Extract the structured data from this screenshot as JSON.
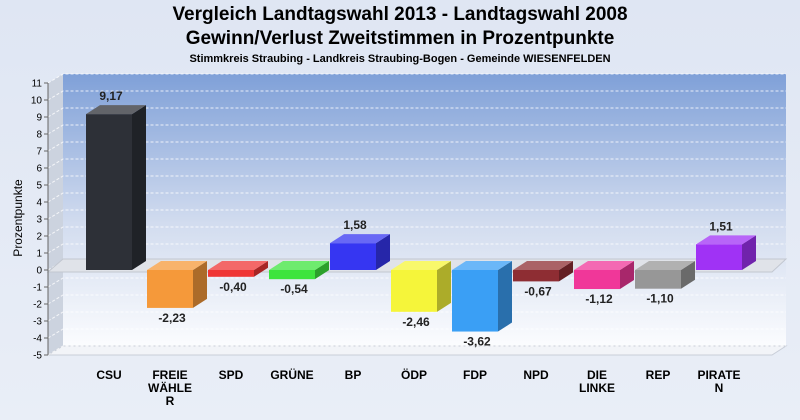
{
  "chart_data": {
    "type": "bar",
    "title": "Vergleich Landtagswahl 2013 - Landtagswahl 2008",
    "subtitle": "Gewinn/Verlust Zweitstimmen in Prozentpunkte",
    "subtitle2": "Stimmkreis Straubing - Landkreis Straubing-Bogen - Gemeinde WIESENFELDEN",
    "ylabel": "Prozentpunkte",
    "xlabel": "",
    "ylim": [
      -5,
      11
    ],
    "yticks": [
      "11",
      "10",
      "9",
      "8",
      "7",
      "6",
      "5",
      "4",
      "3",
      "2",
      "1",
      "0",
      "-1",
      "-2",
      "-3",
      "-4",
      "-5"
    ],
    "grid": true,
    "categories": [
      "CSU",
      "FREIE WÄHLER",
      "SPD",
      "GRÜNE",
      "BP",
      "ÖDP",
      "FDP",
      "NPD",
      "DIE LINKE",
      "REP",
      "PIRATEN"
    ],
    "category_lines": [
      [
        "CSU"
      ],
      [
        "FREIE",
        "WÄHLE",
        "R"
      ],
      [
        "SPD"
      ],
      [
        "GRÜNE"
      ],
      [
        "BP"
      ],
      [
        "ÖDP"
      ],
      [
        "FDP"
      ],
      [
        "NPD"
      ],
      [
        "DIE",
        "LINKE"
      ],
      [
        "REP"
      ],
      [
        "PIRATE",
        "N"
      ]
    ],
    "values": [
      9.17,
      -2.23,
      -0.4,
      -0.54,
      1.58,
      -2.46,
      -3.62,
      -0.67,
      -1.12,
      -1.1,
      1.51
    ],
    "value_labels": [
      "9,17",
      "-2,23",
      "-0,40",
      "-0,54",
      "1,58",
      "-2,46",
      "-3,62",
      "-0,67",
      "-1,12",
      "-1,10",
      "1,51"
    ],
    "colors": [
      "#2d3037",
      "#f5993a",
      "#ef3535",
      "#3de43d",
      "#3636f2",
      "#f5f53a",
      "#3a9ff5",
      "#8e2d33",
      "#f03799",
      "#979797",
      "#a032f5"
    ]
  }
}
